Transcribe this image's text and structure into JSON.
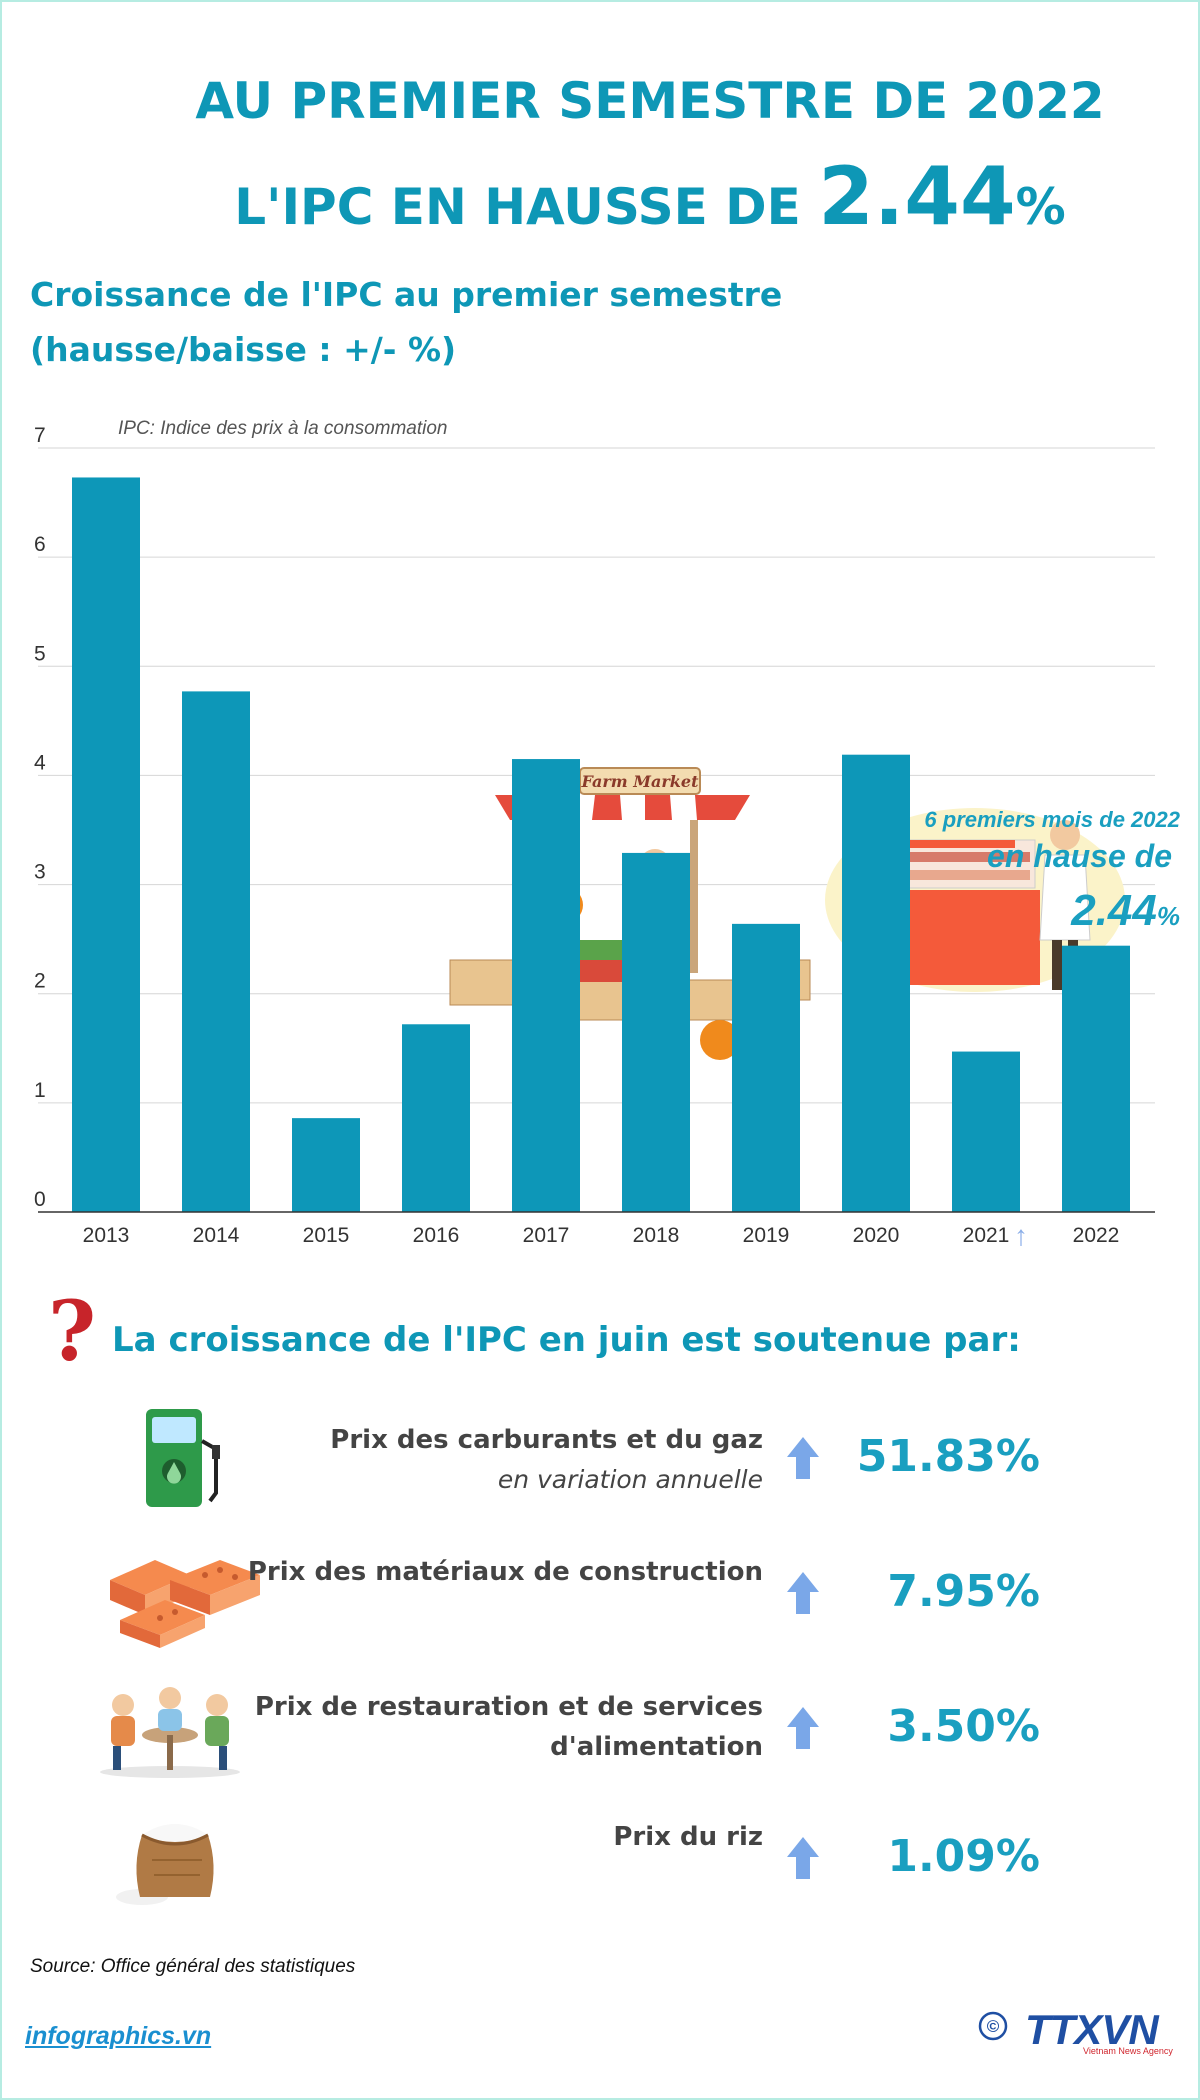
{
  "header": {
    "line1": "AU PREMIER SEMESTRE DE 2022",
    "line2_prefix": "L'IPC EN HAUSSE DE ",
    "line2_value": "2.44",
    "line2_unit": "%"
  },
  "chart_title": {
    "line1": "Croissance de l'IPC au premier semestre",
    "line2": "(hausse/baisse : +/- %)"
  },
  "chart_note": "IPC: Indice des prix à la consommation",
  "illustrations": {
    "market_sign": "Farm Market"
  },
  "chart_data": {
    "type": "bar",
    "title": "Croissance de l'IPC au premier semestre",
    "subtitle": "(hausse/baisse : +/- %)",
    "categories": [
      "2013",
      "2014",
      "2015",
      "2016",
      "2017",
      "2018",
      "2019",
      "2020",
      "2021",
      "2022"
    ],
    "values": [
      6.73,
      4.77,
      0.86,
      1.72,
      4.15,
      3.29,
      2.64,
      4.19,
      1.47,
      2.44
    ],
    "ylim": [
      0,
      7
    ],
    "yticks": [
      "0",
      "1",
      "2",
      "3",
      "4",
      "5",
      "6",
      "7"
    ],
    "grid": true,
    "bar_color": "#0d97b8",
    "annotation": {
      "line1": "6 premiers mois de 2022",
      "line2": "en hause de",
      "value": "2.44",
      "unit": "%"
    }
  },
  "drivers": {
    "title": "La croissance de l'IPC en juin est soutenue par:",
    "items": [
      {
        "label": "Prix des carburants et du gaz",
        "sublabel": "en variation annuelle",
        "value": "51.83%",
        "icon": "fuel-pump-icon"
      },
      {
        "label": "Prix des matériaux de construction",
        "value": "7.95%",
        "icon": "bricks-icon"
      },
      {
        "label": "Prix de restauration et de services",
        "label2": "d'alimentation",
        "value": "3.50%",
        "icon": "people-dining-icon"
      },
      {
        "label": "Prix du riz",
        "value": "1.09%",
        "icon": "rice-sack-icon"
      }
    ]
  },
  "footer": {
    "source": "Source: Office général des statistiques",
    "site": "infographics.vn",
    "copyright": "©",
    "logo_text": "TTXVN",
    "logo_sub": "Vietnam News Agency"
  },
  "colors": {
    "primary": "#0e97b6",
    "accent_text": "#1a9fc0",
    "arrow": "#7aa7e8"
  }
}
